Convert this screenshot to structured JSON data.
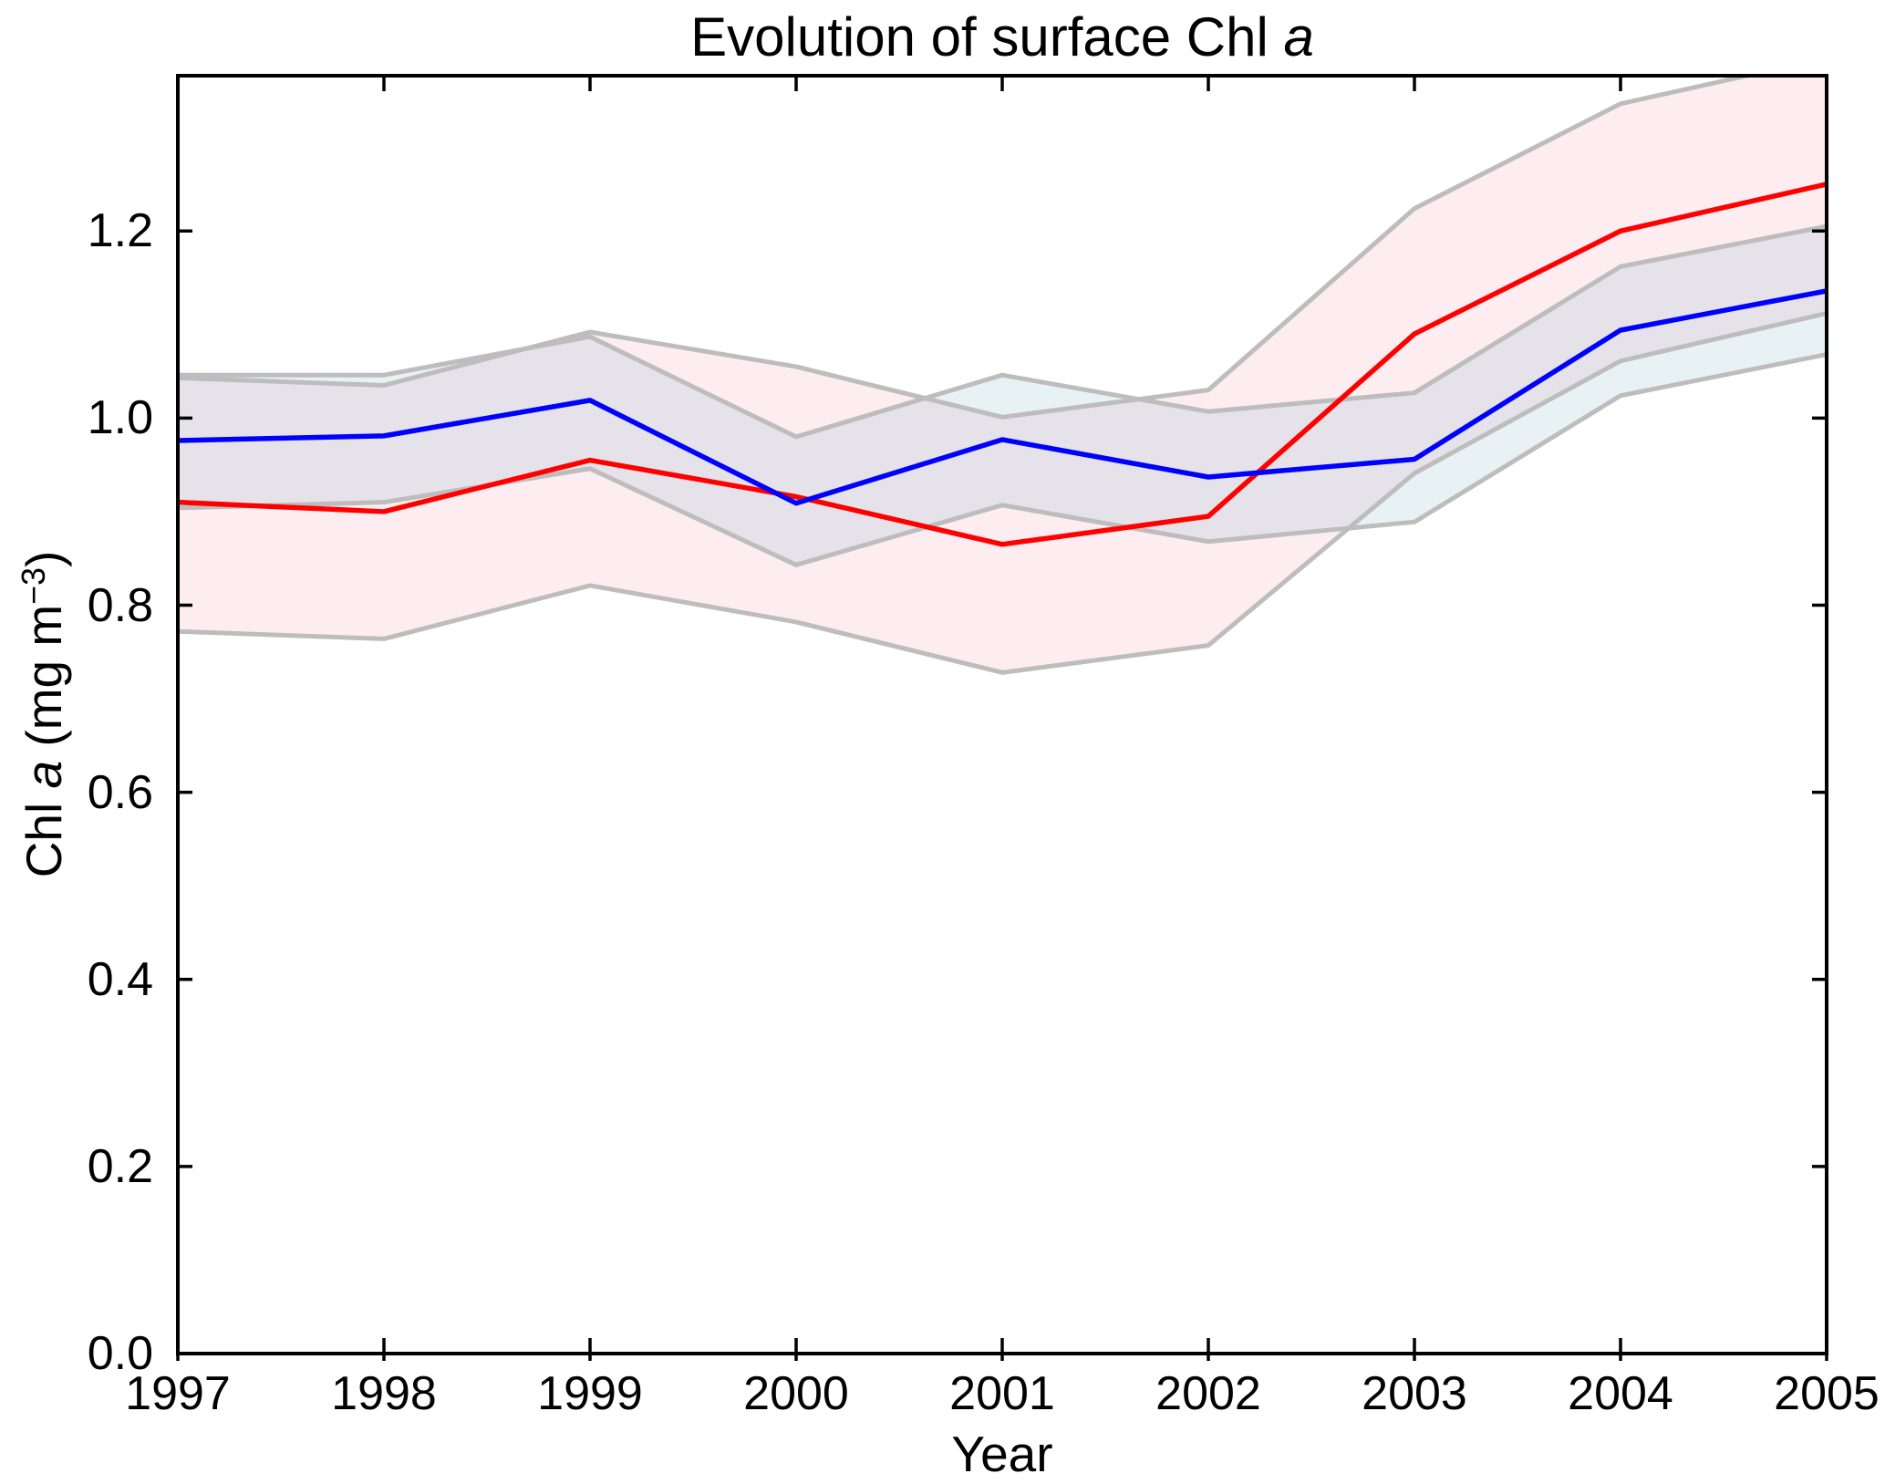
{
  "figure": {
    "title": {
      "pre": "Evolution of surface Chl ",
      "italic": "a"
    },
    "xlabel": "Year",
    "ylabel": {
      "pre": "Chl ",
      "italic": "a",
      "mid": " (mg m",
      "sup": "−3",
      "post": ")"
    }
  },
  "chart_data": {
    "type": "line",
    "title": "Evolution of surface Chl a",
    "xlabel": "Year",
    "ylabel": "Chl a (mg m^-3)",
    "grid": false,
    "legend": null,
    "x": [
      1997,
      1998,
      1999,
      2000,
      2001,
      2002,
      2003,
      2004,
      2005
    ],
    "xlim": [
      1997,
      2005
    ],
    "ylim": [
      0,
      1.366
    ],
    "x_tick_labels": [
      "1997",
      "1998",
      "1999",
      "2000",
      "2001",
      "2002",
      "2003",
      "2004",
      "2005"
    ],
    "y_ticks": [
      0.0,
      0.2,
      0.4,
      0.6,
      0.8,
      1.0,
      1.2
    ],
    "y_tick_labels": [
      "0.0",
      "0.2",
      "0.4",
      "0.6",
      "0.8",
      "1.0",
      "1.2"
    ],
    "colors": {
      "red_line": "#ff0000",
      "blue_line": "#0000ff",
      "red_band_fill": "rgba(242,134,161,0.15)",
      "blue_band_fill": "rgba(102,168,188,0.15)",
      "band_edge": "#bdbdbd",
      "axis": "#000000"
    },
    "series": [
      {
        "name": "red-mean",
        "kind": "line",
        "values": [
          0.91,
          0.9,
          0.955,
          0.916,
          0.865,
          0.895,
          1.09,
          1.2,
          1.25
        ]
      },
      {
        "name": "red-band",
        "kind": "band",
        "upper": [
          1.043,
          1.035,
          1.092,
          1.055,
          1.001,
          1.03,
          1.224,
          1.336,
          1.385
        ],
        "lower": [
          0.772,
          0.764,
          0.821,
          0.782,
          0.728,
          0.757,
          0.941,
          1.061,
          1.112
        ]
      },
      {
        "name": "blue-mean",
        "kind": "line",
        "values": [
          0.976,
          0.981,
          1.019,
          0.909,
          0.977,
          0.937,
          0.956,
          1.094,
          1.136
        ]
      },
      {
        "name": "blue-band",
        "kind": "band",
        "upper": [
          1.046,
          1.046,
          1.087,
          0.98,
          1.046,
          1.007,
          1.027,
          1.162,
          1.205
        ],
        "lower": [
          0.904,
          0.91,
          0.946,
          0.843,
          0.907,
          0.868,
          0.889,
          1.024,
          1.068
        ]
      }
    ]
  }
}
